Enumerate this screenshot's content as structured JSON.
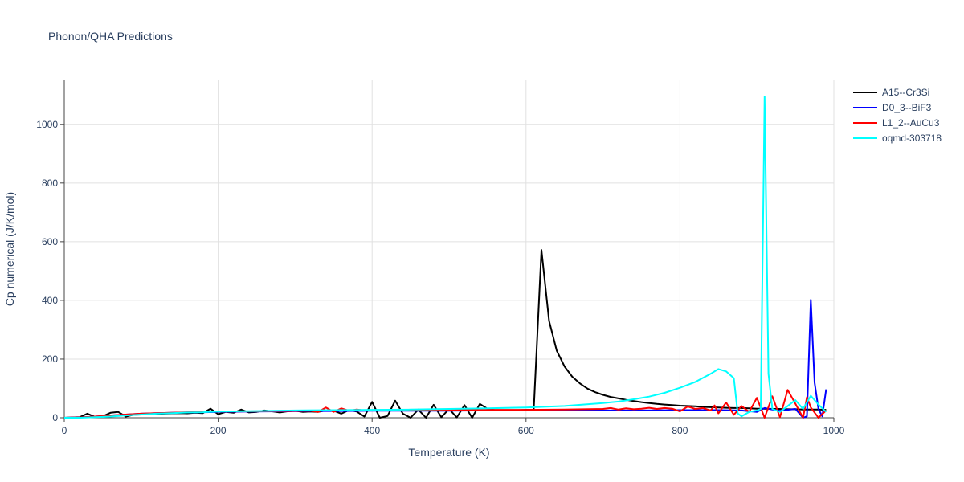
{
  "chart_data": {
    "type": "line",
    "title": "Phonon/QHA Predictions",
    "xlabel": "Temperature (K)",
    "ylabel": "Cp numerical (J/K/mol)",
    "xlim": [
      0,
      1000
    ],
    "ylim": [
      0,
      1150
    ],
    "xticks": [
      0,
      200,
      400,
      600,
      800,
      1000
    ],
    "yticks": [
      0,
      200,
      400,
      600,
      800,
      1000
    ],
    "grid": true,
    "legend_position": "top-right",
    "series": [
      {
        "name": "A15--Cr3Si",
        "color": "#000000",
        "points": [
          [
            0,
            0
          ],
          [
            10,
            1
          ],
          [
            20,
            2
          ],
          [
            30,
            14
          ],
          [
            40,
            3
          ],
          [
            50,
            5
          ],
          [
            60,
            17
          ],
          [
            70,
            20
          ],
          [
            80,
            4
          ],
          [
            90,
            10
          ],
          [
            100,
            11
          ],
          [
            110,
            12
          ],
          [
            120,
            13
          ],
          [
            130,
            14
          ],
          [
            140,
            15
          ],
          [
            150,
            16
          ],
          [
            160,
            15
          ],
          [
            170,
            17
          ],
          [
            180,
            16
          ],
          [
            190,
            31
          ],
          [
            200,
            12
          ],
          [
            210,
            20
          ],
          [
            220,
            17
          ],
          [
            230,
            28
          ],
          [
            240,
            18
          ],
          [
            250,
            20
          ],
          [
            260,
            25
          ],
          [
            270,
            22
          ],
          [
            280,
            18
          ],
          [
            290,
            22
          ],
          [
            300,
            24
          ],
          [
            310,
            20
          ],
          [
            320,
            21
          ],
          [
            330,
            20
          ],
          [
            340,
            25
          ],
          [
            350,
            24
          ],
          [
            360,
            14
          ],
          [
            370,
            26
          ],
          [
            380,
            21
          ],
          [
            390,
            4
          ],
          [
            400,
            54
          ],
          [
            410,
            0
          ],
          [
            420,
            6
          ],
          [
            430,
            58
          ],
          [
            440,
            14
          ],
          [
            450,
            0
          ],
          [
            460,
            28
          ],
          [
            470,
            0
          ],
          [
            480,
            44
          ],
          [
            490,
            2
          ],
          [
            500,
            30
          ],
          [
            510,
            1
          ],
          [
            520,
            43
          ],
          [
            530,
            0
          ],
          [
            540,
            47
          ],
          [
            550,
            30
          ],
          [
            560,
            26
          ],
          [
            570,
            26
          ],
          [
            580,
            26
          ],
          [
            590,
            26
          ],
          [
            600,
            27
          ],
          [
            610,
            27
          ],
          [
            620,
            572
          ],
          [
            630,
            330
          ],
          [
            640,
            228
          ],
          [
            650,
            175
          ],
          [
            660,
            140
          ],
          [
            670,
            117
          ],
          [
            680,
            99
          ],
          [
            690,
            87
          ],
          [
            700,
            78
          ],
          [
            710,
            71
          ],
          [
            720,
            66
          ],
          [
            730,
            61
          ],
          [
            740,
            57
          ],
          [
            750,
            53
          ],
          [
            760,
            50
          ],
          [
            770,
            47
          ],
          [
            780,
            45
          ],
          [
            790,
            43
          ],
          [
            800,
            41
          ],
          [
            810,
            40
          ],
          [
            820,
            39
          ],
          [
            830,
            37
          ],
          [
            840,
            36
          ],
          [
            850,
            35
          ],
          [
            860,
            34
          ],
          [
            870,
            33
          ],
          [
            880,
            33
          ],
          [
            890,
            32
          ],
          [
            900,
            31
          ],
          [
            910,
            31
          ],
          [
            920,
            30
          ],
          [
            930,
            30
          ],
          [
            940,
            29
          ],
          [
            950,
            29
          ],
          [
            960,
            28
          ],
          [
            970,
            28
          ],
          [
            980,
            28
          ],
          [
            990,
            27
          ]
        ]
      },
      {
        "name": "D0_3--BiF3",
        "color": "#0000ff",
        "points": [
          [
            0,
            0
          ],
          [
            20,
            1
          ],
          [
            40,
            4
          ],
          [
            60,
            8
          ],
          [
            80,
            11
          ],
          [
            100,
            14
          ],
          [
            120,
            16
          ],
          [
            140,
            17
          ],
          [
            160,
            18
          ],
          [
            180,
            19
          ],
          [
            200,
            20
          ],
          [
            240,
            21
          ],
          [
            280,
            22
          ],
          [
            320,
            23
          ],
          [
            360,
            23
          ],
          [
            400,
            24
          ],
          [
            450,
            24
          ],
          [
            500,
            24
          ],
          [
            550,
            25
          ],
          [
            600,
            25
          ],
          [
            650,
            25
          ],
          [
            700,
            25
          ],
          [
            750,
            25
          ],
          [
            800,
            26
          ],
          [
            850,
            26
          ],
          [
            880,
            25
          ],
          [
            900,
            20
          ],
          [
            910,
            33
          ],
          [
            920,
            28
          ],
          [
            930,
            24
          ],
          [
            940,
            27
          ],
          [
            950,
            30
          ],
          [
            960,
            0
          ],
          [
            965,
            5
          ],
          [
            970,
            402
          ],
          [
            975,
            120
          ],
          [
            980,
            30
          ],
          [
            985,
            5
          ],
          [
            990,
            97
          ]
        ]
      },
      {
        "name": "L1_2--AuCu3",
        "color": "#ff0000",
        "points": [
          [
            0,
            0
          ],
          [
            20,
            1
          ],
          [
            40,
            4
          ],
          [
            60,
            8
          ],
          [
            80,
            11
          ],
          [
            100,
            14
          ],
          [
            120,
            16
          ],
          [
            140,
            17
          ],
          [
            160,
            19
          ],
          [
            180,
            20
          ],
          [
            200,
            21
          ],
          [
            240,
            22
          ],
          [
            280,
            23
          ],
          [
            320,
            24
          ],
          [
            330,
            20
          ],
          [
            340,
            35
          ],
          [
            350,
            20
          ],
          [
            360,
            32
          ],
          [
            370,
            24
          ],
          [
            380,
            28
          ],
          [
            390,
            25
          ],
          [
            400,
            26
          ],
          [
            450,
            26
          ],
          [
            500,
            27
          ],
          [
            550,
            27
          ],
          [
            600,
            27
          ],
          [
            650,
            28
          ],
          [
            700,
            30
          ],
          [
            710,
            33
          ],
          [
            720,
            28
          ],
          [
            730,
            32
          ],
          [
            740,
            29
          ],
          [
            750,
            31
          ],
          [
            760,
            34
          ],
          [
            770,
            30
          ],
          [
            780,
            33
          ],
          [
            790,
            31
          ],
          [
            800,
            22
          ],
          [
            810,
            38
          ],
          [
            820,
            30
          ],
          [
            830,
            33
          ],
          [
            840,
            25
          ],
          [
            845,
            42
          ],
          [
            850,
            15
          ],
          [
            860,
            52
          ],
          [
            870,
            10
          ],
          [
            880,
            40
          ],
          [
            890,
            20
          ],
          [
            900,
            68
          ],
          [
            910,
            0
          ],
          [
            920,
            73
          ],
          [
            930,
            2
          ],
          [
            940,
            95
          ],
          [
            950,
            48
          ],
          [
            960,
            0
          ],
          [
            965,
            70
          ],
          [
            970,
            35
          ],
          [
            980,
            0
          ],
          [
            990,
            25
          ]
        ]
      },
      {
        "name": "oqmd-303718",
        "color": "#00ffff",
        "points": [
          [
            0,
            0
          ],
          [
            20,
            0
          ],
          [
            40,
            2
          ],
          [
            60,
            4
          ],
          [
            80,
            8
          ],
          [
            100,
            11
          ],
          [
            120,
            14
          ],
          [
            140,
            16
          ],
          [
            160,
            18
          ],
          [
            180,
            19
          ],
          [
            200,
            21
          ],
          [
            250,
            23
          ],
          [
            300,
            25
          ],
          [
            350,
            26
          ],
          [
            400,
            27
          ],
          [
            450,
            28
          ],
          [
            500,
            30
          ],
          [
            550,
            32
          ],
          [
            600,
            35
          ],
          [
            650,
            40
          ],
          [
            700,
            50
          ],
          [
            720,
            55
          ],
          [
            740,
            63
          ],
          [
            760,
            72
          ],
          [
            780,
            85
          ],
          [
            800,
            102
          ],
          [
            820,
            122
          ],
          [
            840,
            150
          ],
          [
            850,
            166
          ],
          [
            860,
            158
          ],
          [
            870,
            135
          ],
          [
            875,
            15
          ],
          [
            880,
            5
          ],
          [
            890,
            20
          ],
          [
            900,
            25
          ],
          [
            905,
            30
          ],
          [
            910,
            1095
          ],
          [
            915,
            150
          ],
          [
            920,
            30
          ],
          [
            930,
            20
          ],
          [
            940,
            40
          ],
          [
            950,
            60
          ],
          [
            960,
            30
          ],
          [
            970,
            75
          ],
          [
            980,
            45
          ],
          [
            990,
            20
          ]
        ]
      }
    ]
  }
}
